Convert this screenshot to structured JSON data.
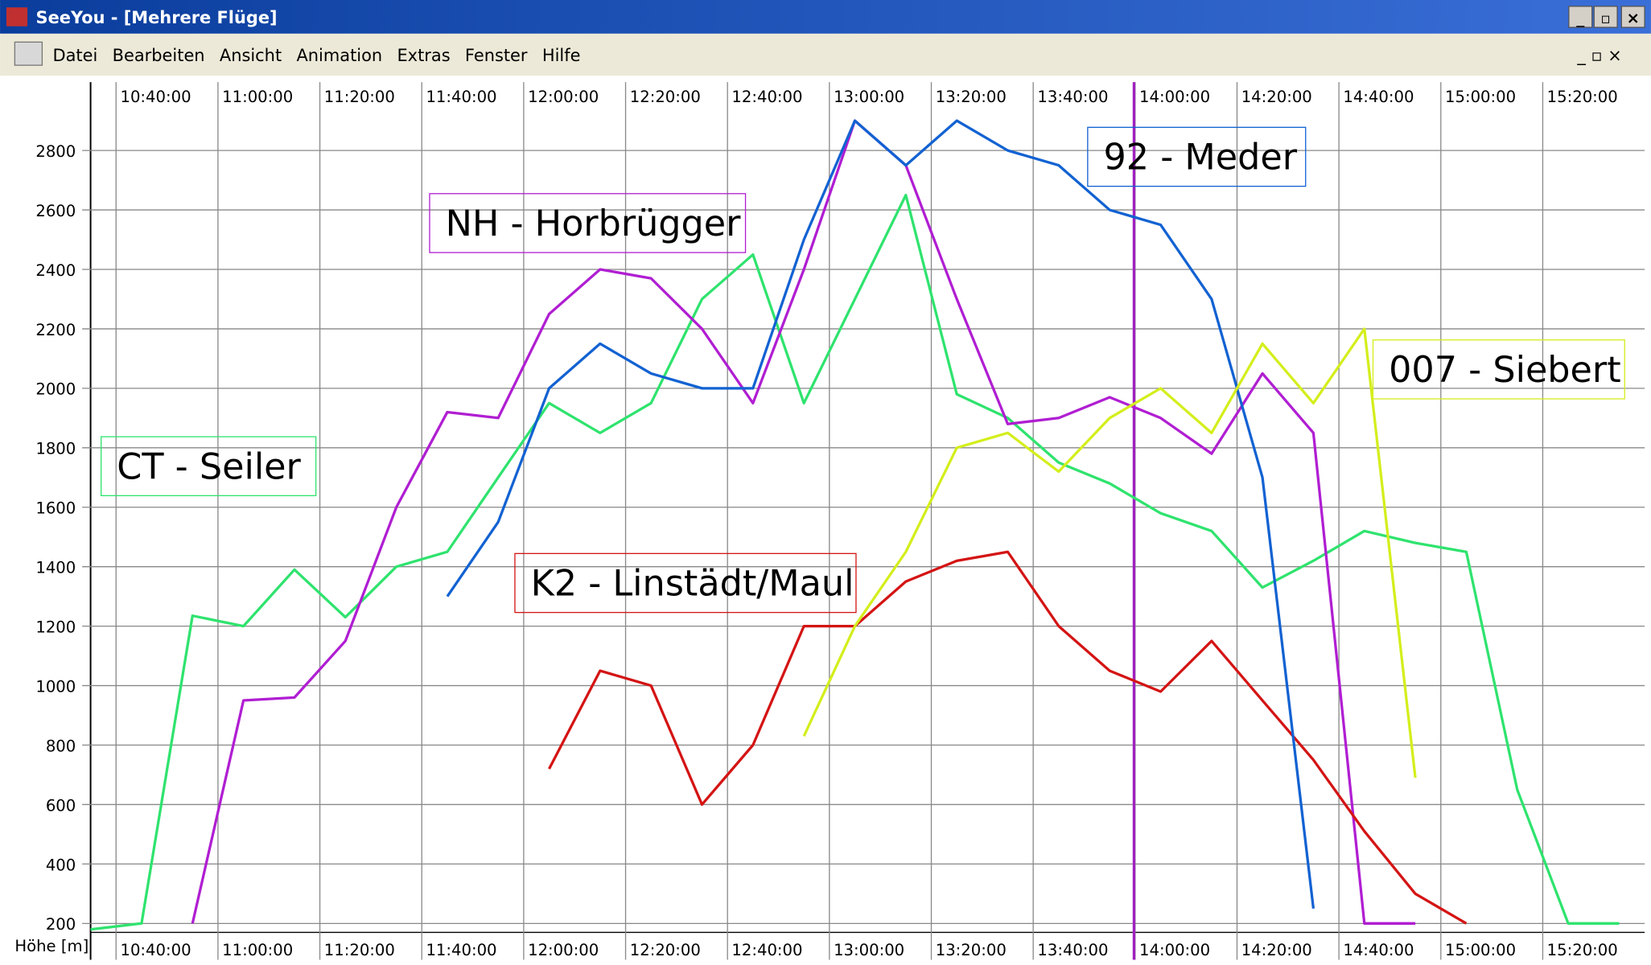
{
  "window": {
    "title": "SeeYou - [Mehrere Flüge]",
    "menu": [
      "Datei",
      "Bearbeiten",
      "Ansicht",
      "Animation",
      "Extras",
      "Fenster",
      "Hilfe"
    ]
  },
  "chart_data": {
    "type": "line",
    "ylabel": "Höhe [m]",
    "x": [
      "10:35:00",
      "10:45:00",
      "10:55:00",
      "11:05:00",
      "11:15:00",
      "11:25:00",
      "11:35:00",
      "11:45:00",
      "11:55:00",
      "12:05:00",
      "12:15:00",
      "12:25:00",
      "12:35:00",
      "12:45:00",
      "12:55:00",
      "13:05:00",
      "13:15:00",
      "13:25:00",
      "13:35:00",
      "13:45:00",
      "13:55:00",
      "14:05:00",
      "14:15:00",
      "14:25:00",
      "14:35:00",
      "14:45:00",
      "14:55:00",
      "15:05:00",
      "15:15:00",
      "15:25:00",
      "15:35:00"
    ],
    "xlim": [
      "10:35:00",
      "15:40:00"
    ],
    "xticks": [
      "10:40:00",
      "11:00:00",
      "11:20:00",
      "11:40:00",
      "12:00:00",
      "12:20:00",
      "12:40:00",
      "13:00:00",
      "13:20:00",
      "13:40:00",
      "14:00:00",
      "14:20:00",
      "14:40:00",
      "15:00:00",
      "15:20:00"
    ],
    "ylim": [
      170,
      3030
    ],
    "yticks": [
      200,
      400,
      600,
      800,
      1000,
      1200,
      1400,
      1600,
      1800,
      2000,
      2200,
      2400,
      2600,
      2800
    ],
    "grid": true,
    "series": [
      {
        "name": "CT - Seiler",
        "color": "#2fe36e",
        "values": [
          180,
          200,
          1235,
          1200,
          1390,
          1230,
          1400,
          1450,
          1700,
          1950,
          1850,
          1950,
          2300,
          2450,
          1950,
          2300,
          2650,
          1980,
          1900,
          1750,
          1680,
          1580,
          1520,
          1330,
          1420,
          1520,
          1480,
          1450,
          650,
          200,
          200
        ]
      },
      {
        "name": "NH - Horbrügger",
        "color": "#b01ed2",
        "values": [
          null,
          null,
          200,
          950,
          960,
          1150,
          1600,
          1920,
          1900,
          2250,
          2400,
          2370,
          2200,
          1950,
          2400,
          2900,
          2750,
          2300,
          1880,
          1900,
          1970,
          1900,
          1780,
          2050,
          1850,
          200,
          200,
          null,
          null,
          null,
          null
        ]
      },
      {
        "name": "K2 - Linstädt/Maul",
        "color": "#d41414",
        "values": [
          null,
          null,
          null,
          null,
          null,
          null,
          null,
          null,
          null,
          720,
          1050,
          1000,
          600,
          800,
          1200,
          1200,
          1350,
          1420,
          1450,
          1200,
          1050,
          980,
          1150,
          950,
          750,
          510,
          300,
          200,
          null,
          null,
          null
        ]
      },
      {
        "name": "92 - Meder",
        "color": "#1262d2",
        "values": [
          null,
          null,
          null,
          null,
          null,
          null,
          null,
          1300,
          1550,
          2000,
          2150,
          2050,
          2000,
          2000,
          2500,
          2900,
          2750,
          2900,
          2800,
          2750,
          2600,
          2550,
          2300,
          1700,
          250,
          null,
          null,
          null,
          null,
          null,
          null
        ]
      },
      {
        "name": "007 - Siebert",
        "color": "#d4ee1c",
        "values": [
          null,
          null,
          null,
          null,
          null,
          null,
          null,
          null,
          null,
          null,
          null,
          null,
          null,
          null,
          830,
          1200,
          1450,
          1800,
          1850,
          1720,
          1900,
          2000,
          1850,
          2150,
          1950,
          2200,
          690,
          null,
          null,
          null,
          null
        ]
      }
    ]
  }
}
